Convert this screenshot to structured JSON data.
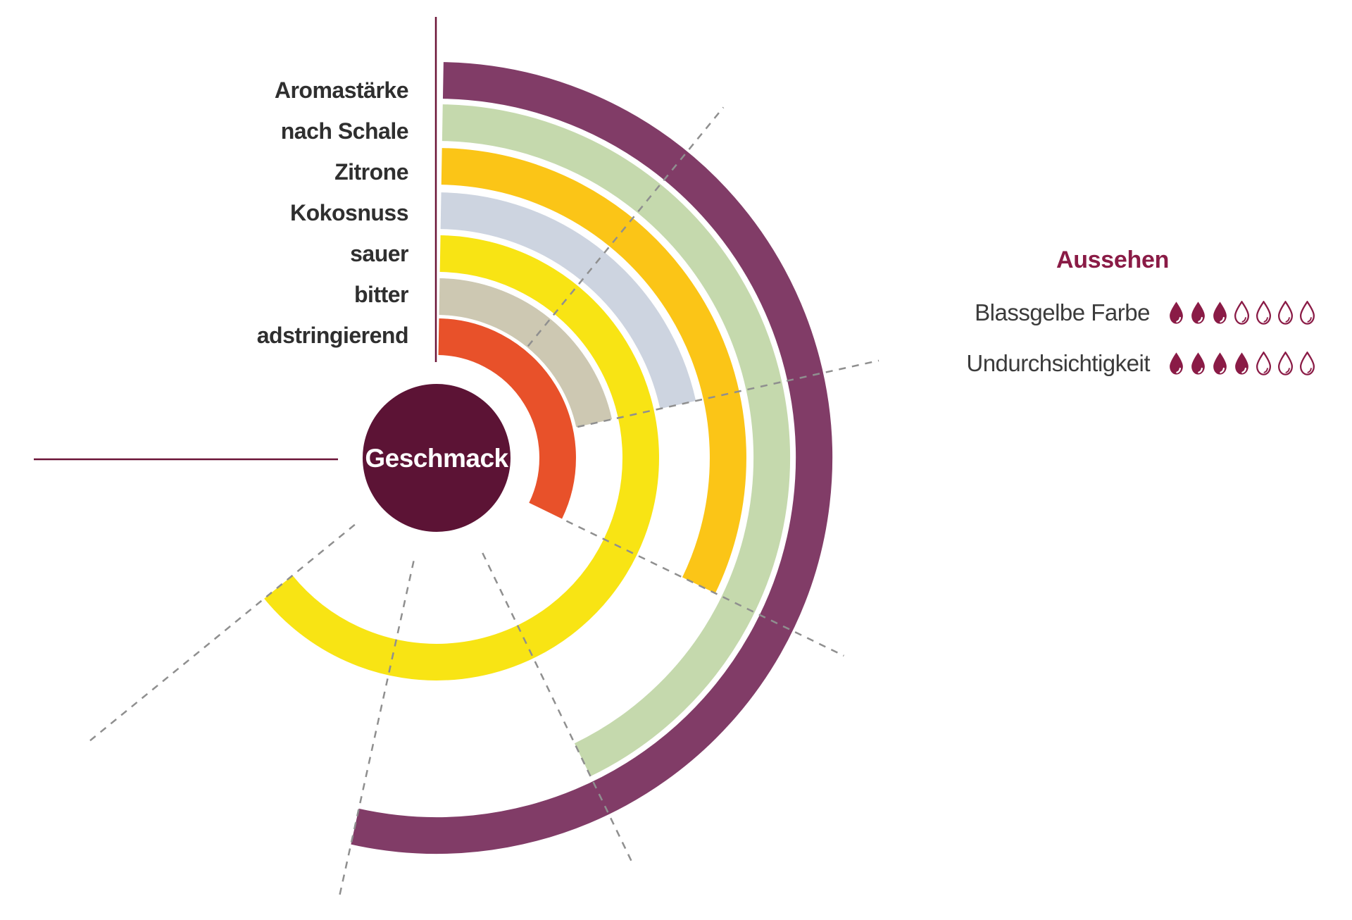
{
  "chart_data": {
    "type": "radial-arc",
    "title": "Geschmack",
    "scale": {
      "min": 0,
      "max": 7,
      "sweep_deg": 270,
      "start": "top",
      "direction": "clockwise",
      "gridlines_at_units": [
        1,
        2,
        3,
        4,
        5,
        6
      ],
      "grid_style": "dashed"
    },
    "series": [
      {
        "label": "Aromastärke",
        "value": 5,
        "color": "#813c67"
      },
      {
        "label": "nach Schale",
        "value": 4,
        "color": "#c5d9ad"
      },
      {
        "label": "Zitrone",
        "value": 3,
        "color": "#fbc517"
      },
      {
        "label": "Kokosnuss",
        "value": 2,
        "color": "#cdd4e0"
      },
      {
        "label": "sauer",
        "value": 6,
        "color": "#f8e414"
      },
      {
        "label": "bitter",
        "value": 2,
        "color": "#cdc8b2"
      },
      {
        "label": "adstringierend",
        "value": 3,
        "color": "#e8512a"
      }
    ]
  },
  "aussehen_panel": {
    "title": "Aussehen",
    "max_drops": 7,
    "rows": [
      {
        "label": "Blassgelbe Farbe",
        "value": 3
      },
      {
        "label": "Undurchsichtigkeit",
        "value": 4
      }
    ]
  },
  "colors": {
    "background": "#ffffff",
    "center_circle": "#5c1335",
    "center_text": "#ffffff",
    "axis_line": "#6b1437",
    "gridline": "#8f8f8f",
    "series_label": "#2f2f2f",
    "panel_accent": "#8a1b46",
    "panel_label": "#3b3b3b"
  }
}
